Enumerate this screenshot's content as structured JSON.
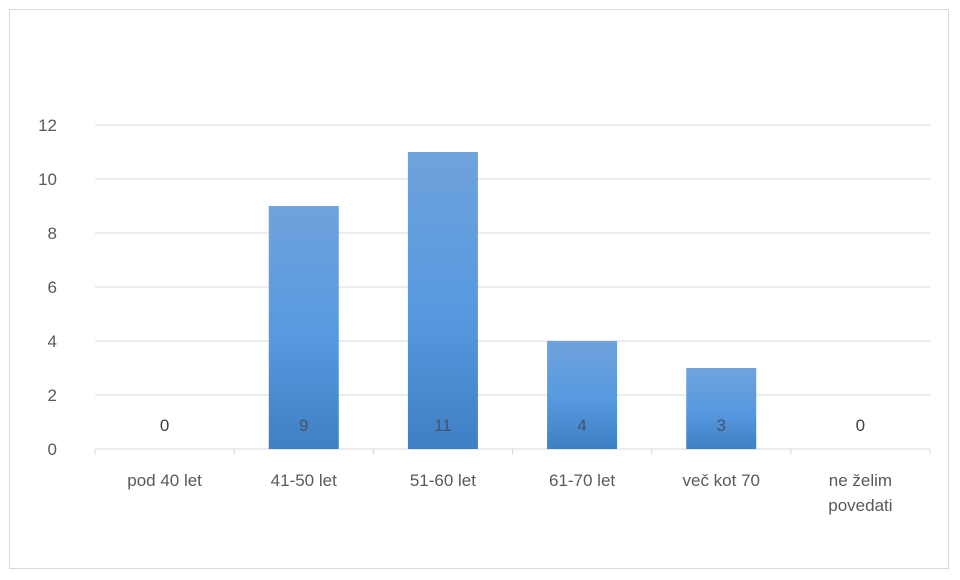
{
  "chart_data": {
    "type": "bar",
    "categories": [
      [
        "pod 40 let"
      ],
      [
        "41-50 let"
      ],
      [
        "51-60 let"
      ],
      [
        "61-70 let"
      ],
      [
        "več kot 70"
      ],
      [
        "ne želim",
        "povedati"
      ]
    ],
    "values": [
      0,
      9,
      11,
      4,
      3,
      0
    ],
    "data_labels": [
      "0",
      "9",
      "11",
      "4",
      "3",
      "0"
    ],
    "ylim": [
      0,
      12
    ],
    "yticks": [
      0,
      2,
      4,
      6,
      8,
      10,
      12
    ],
    "grid": true,
    "legend": "none",
    "title": "",
    "xlabel": "",
    "ylabel": "",
    "colors": {
      "bar_top": "#6fa3dc",
      "bar_mid": "#5699e0",
      "bar_bottom": "#3f7fc4",
      "gridline": "#d9d9d9",
      "axis_text": "#595959",
      "label_on_bar": "#44546a",
      "label_off_bar": "#404040"
    }
  }
}
